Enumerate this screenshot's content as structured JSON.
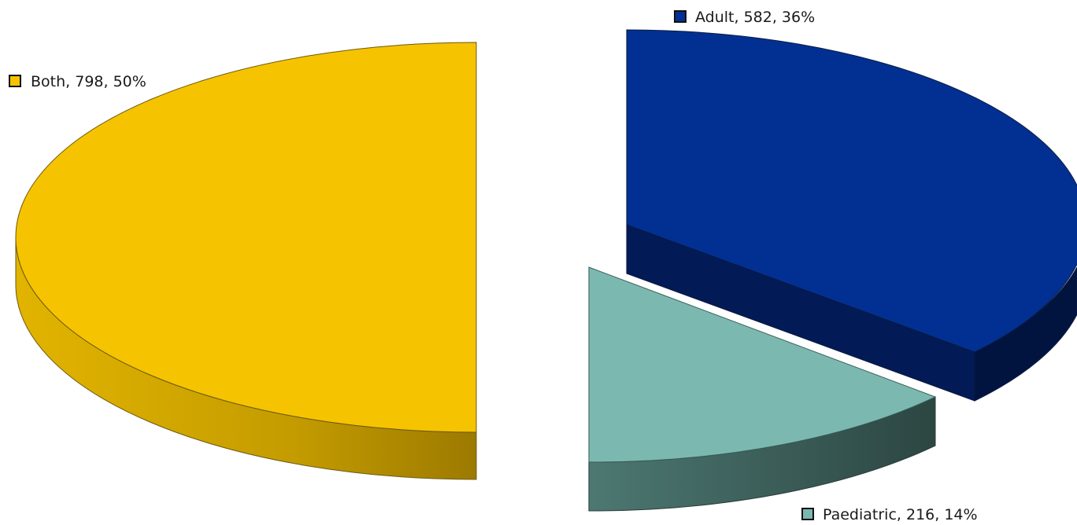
{
  "chart_data": {
    "type": "pie",
    "title": "",
    "style": "3d-exploded",
    "slices": [
      {
        "name": "Adult",
        "value": 582,
        "percent": 36,
        "label": "Adult, 582, 36%",
        "color": "#023092",
        "side_color": "#011440"
      },
      {
        "name": "Paediatric",
        "value": 216,
        "percent": 14,
        "label": "Paediatric, 216, 14%",
        "color": "#7bb8b0",
        "side_color": "#3a5c57"
      },
      {
        "name": "Both",
        "value": 798,
        "percent": 50,
        "label": "Both, 798, 50%",
        "color": "#f6c300",
        "side_color": "#c09a00"
      }
    ]
  }
}
